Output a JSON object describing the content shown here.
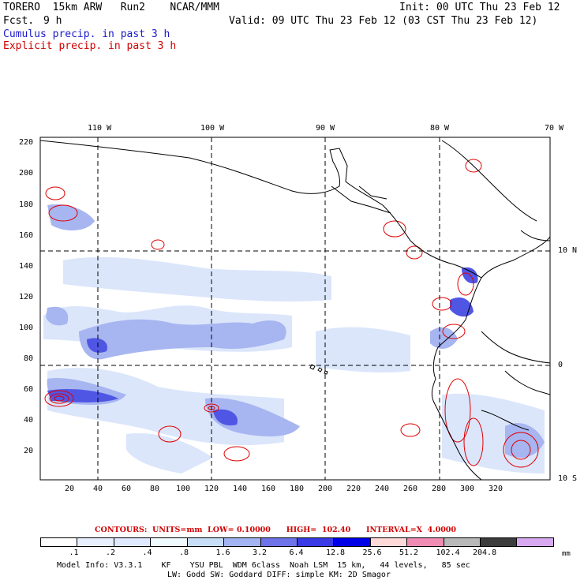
{
  "header": {
    "model": "TORERO  15km ARW   Run2    NCAR/MMM",
    "fcst_label": "Fcst.",
    "fcst_value": "9 h",
    "init": "Init: 00 UTC Thu 23 Feb 12",
    "valid": "Valid: 09 UTC Thu 23 Feb 12 (03 CST Thu 23 Feb 12)",
    "line_cumulus": "Cumulus precip. in past 3 h",
    "line_explicit": "Explicit precip. in past 3 h"
  },
  "axes": {
    "lon_labels": [
      "110 W",
      "100 W",
      "90 W",
      "80 W",
      "70 W"
    ],
    "lat_labels": [
      "10 N",
      "0",
      "10 S"
    ],
    "y_ticks": [
      "220",
      "200",
      "180",
      "160",
      "140",
      "120",
      "100",
      "80",
      "60",
      "40",
      "20"
    ],
    "x_ticks": [
      "20",
      "40",
      "60",
      "80",
      "100",
      "120",
      "140",
      "160",
      "180",
      "200",
      "220",
      "240",
      "260",
      "280",
      "300",
      "320"
    ]
  },
  "contours_line": "CONTOURS:  UNITS=mm  LOW= 0.10000      HIGH=  102.40      INTERVAL=X  4.0000",
  "colorbar": {
    "labels": [
      ".1",
      ".2",
      ".4",
      ".8",
      "1.6",
      "3.2",
      "6.4",
      "12.8",
      "25.6",
      "51.2",
      "102.4",
      "204.8"
    ],
    "unit": "mm",
    "colors": [
      "#ffffff",
      "#e8f0ff",
      "#dfe9ff",
      "#f0fbff",
      "#c8def8",
      "#a4b4f2",
      "#6f73ea",
      "#3b3be6",
      "#0000e8",
      "#ffd8d8",
      "#f08cb4",
      "#b8b8b8",
      "#3c3c3c",
      "#d8a8f0"
    ]
  },
  "footer": {
    "line1": "Model Info: V3.3.1    KF    YSU PBL  WDM 6class  Noah LSM  15 km,   44 levels,   85 sec",
    "line2": "LW: Godd SW: Goddard DIFF: simple KM: 2D Smagor"
  }
}
